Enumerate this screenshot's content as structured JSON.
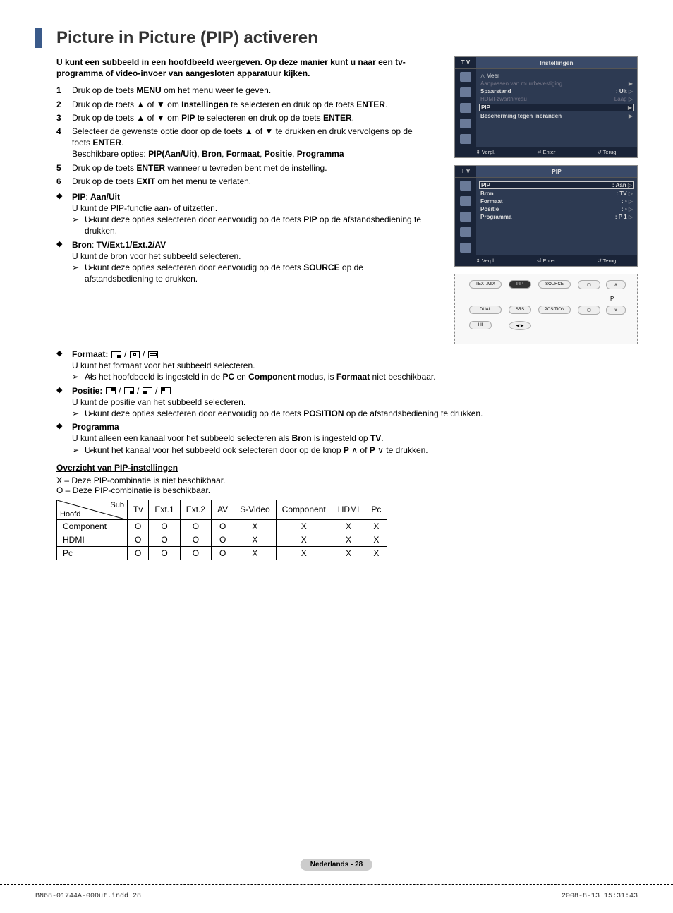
{
  "title": "Picture in Picture (PIP) activeren",
  "intro": "U kunt een subbeeld in een hoofdbeeld weergeven. Op deze manier kunt u naar een tv-programma of video-invoer van aangesloten apparatuur kijken.",
  "steps": {
    "s1_a": "Druk op de toets ",
    "s1_b": "MENU",
    "s1_c": " om het menu weer te geven.",
    "s2_a": "Druk op de toets ▲ of ▼ om ",
    "s2_b": "Instellingen",
    "s2_c": " te selecteren en druk op de toets ",
    "s2_d": "ENTER",
    "s2_e": ".",
    "s3_a": "Druk op de toets ▲ of ▼ om ",
    "s3_b": "PIP",
    "s3_c": " te selecteren en druk op de toets ",
    "s3_d": "ENTER",
    "s3_e": ".",
    "s4_a": "Selecteer de gewenste optie door op de toets ▲ of ▼ te drukken en druk vervolgens op de toets ",
    "s4_b": "ENTER",
    "s4_c": ".",
    "s4_opts_a": "Beschikbare opties: ",
    "s4_opts_b": "PIP(Aan/Uit)",
    "s4_opts_c": ", ",
    "s4_opts_d": "Bron",
    "s4_opts_e": ", ",
    "s4_opts_f": "Formaat",
    "s4_opts_g": ", ",
    "s4_opts_h": "Positie",
    "s4_opts_i": ", ",
    "s4_opts_j": "Programma",
    "s5_a": "Druk op de toets ",
    "s5_b": "ENTER",
    "s5_c": " wanneer u tevreden bent met de instelling.",
    "s6_a": "Druk op de toets ",
    "s6_b": "EXIT",
    "s6_c": " om het menu te verlaten."
  },
  "bullets": {
    "pip_title_a": "PIP",
    "pip_title_b": ": ",
    "pip_title_c": "Aan/Uit",
    "pip_desc": "U kunt de PIP-functie aan- of uitzetten.",
    "pip_note_a": "U kunt deze opties selecteren door eenvoudig op de toets ",
    "pip_note_b": "PIP",
    "pip_note_c": " op de afstandsbediening te drukken.",
    "bron_title_a": "Bron",
    "bron_title_b": ": ",
    "bron_title_c": "TV/Ext.1/Ext.2/AV",
    "bron_desc": "U kunt de bron voor het subbeeld selecteren.",
    "bron_note_a": "U kunt deze opties selecteren door eenvoudig op de toets ",
    "bron_note_b": "SOURCE",
    "bron_note_c": " op de afstandsbediening te drukken.",
    "fmt_title": "Formaat:",
    "fmt_desc": "U kunt het formaat voor het subbeeld selecteren.",
    "fmt_note_a": "Als het hoofdbeeld is ingesteld in de ",
    "fmt_note_b": "PC",
    "fmt_note_c": " en ",
    "fmt_note_d": "Component",
    "fmt_note_e": " modus, is ",
    "fmt_note_f": "Formaat",
    "fmt_note_g": " niet beschikbaar.",
    "pos_title": "Positie:",
    "pos_desc": "U kunt de positie van het subbeeld selecteren.",
    "pos_note_a": "U kunt deze opties selecteren door eenvoudig op de toets ",
    "pos_note_b": "POSITION",
    "pos_note_c": " op de afstandsbediening te drukken.",
    "prog_title": "Programma",
    "prog_desc_a": "U kunt alleen een kanaal voor het subbeeld selecteren als ",
    "prog_desc_b": "Bron",
    "prog_desc_c": " is ingesteld op ",
    "prog_desc_d": "TV",
    "prog_desc_e": ".",
    "prog_note_a": "U kunt het kanaal voor het subbeeld ook selecteren door op de knop ",
    "prog_note_b": "P",
    "prog_note_c": " of ",
    "prog_note_d": "P",
    "prog_note_e": " te drukken."
  },
  "overview": {
    "title": "Overzicht van PIP-instellingen",
    "legend_x": "X – Deze PIP-combinatie is niet beschikbaar.",
    "legend_o": "O – Deze PIP-combinatie is beschikbaar.",
    "sub_label": "Sub",
    "main_label": "Hoofd",
    "columns": [
      "Tv",
      "Ext.1",
      "Ext.2",
      "AV",
      "S-Video",
      "Component",
      "HDMI",
      "Pc"
    ],
    "rows": [
      {
        "label": "Component",
        "cells": [
          "O",
          "O",
          "O",
          "O",
          "X",
          "X",
          "X",
          "X"
        ]
      },
      {
        "label": "HDMI",
        "cells": [
          "O",
          "O",
          "O",
          "O",
          "X",
          "X",
          "X",
          "X"
        ]
      },
      {
        "label": "Pc",
        "cells": [
          "O",
          "O",
          "O",
          "O",
          "X",
          "X",
          "X",
          "X"
        ]
      }
    ]
  },
  "osd1": {
    "tv": "T V",
    "title": "Instellingen",
    "meer": "△ Meer",
    "r1_l": "Aanpassen van muurbevestiging",
    "r1_r": "▶",
    "r2_l": "Spaarstand",
    "r2_r": ": Uit",
    "r3_l": "HDMI-zwartniveau",
    "r3_r": ": Laag",
    "r4_l": "PIP",
    "r4_r": "▶",
    "r5_l": "Bescherming tegen inbranden",
    "r5_r": "▶",
    "f1": "⇕ Verpl.",
    "f2": "⏎ Enter",
    "f3": "↺ Terug"
  },
  "osd2": {
    "tv": "T V",
    "title": "PIP",
    "r1_l": "PIP",
    "r1_r": ": Aan",
    "r2_l": "Bron",
    "r2_r": ": TV",
    "r3_l": "Formaat",
    "r3_r": ": ▫",
    "r4_l": "Positie",
    "r4_r": ": ▫",
    "r5_l": "Programma",
    "r5_r": ": P  1",
    "f1": "⇕ Verpl.",
    "f2": "⏎ Enter",
    "f3": "↺ Terug"
  },
  "remote": {
    "k1": "TEXT/MIX",
    "k2": "PIP",
    "k3": "SOURCE",
    "k4": "DUAL",
    "k5": "SRS",
    "k6": "POSITION",
    "k7": "P"
  },
  "footer": "Nederlands - 28",
  "print": {
    "file": "BN68-01744A-00Dut.indd   28",
    "stamp": "2008-8-13   15:31:43"
  },
  "colors": {
    "accent_bar": "#3a5a8a",
    "osd_bg": "#2d3a52",
    "osd_dark": "#1a2438",
    "footer_badge": "#cccccc"
  }
}
